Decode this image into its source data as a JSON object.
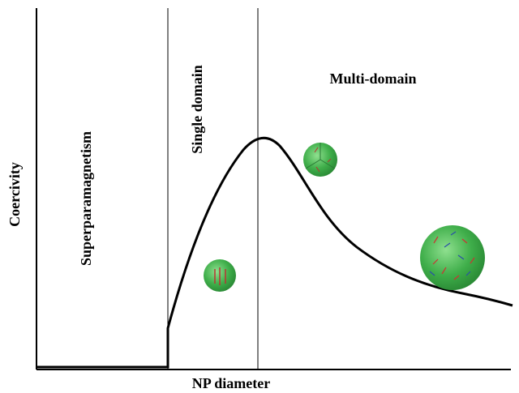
{
  "axes": {
    "y_label": "Coercivity",
    "x_label": "NP diameter"
  },
  "regions": [
    {
      "label": "Superparamagnetism"
    },
    {
      "label": "Single domain"
    },
    {
      "label": "Multi-domain"
    }
  ]
}
